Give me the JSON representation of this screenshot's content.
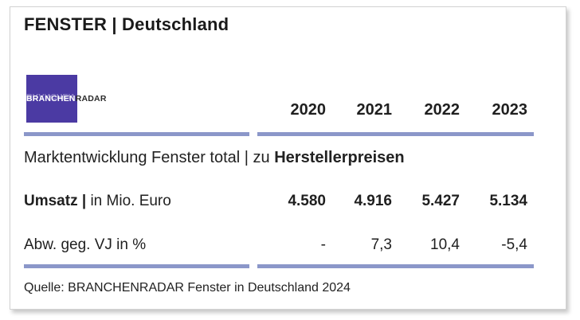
{
  "title": "FENSTER | Deutschland",
  "logo": {
    "part1": "BRANCHEN",
    "part2": "RADAR"
  },
  "years": [
    "2020",
    "2021",
    "2022",
    "2023"
  ],
  "subtitle": {
    "normal": "Marktentwicklung Fenster total | zu ",
    "bold": "Herstellerpreisen"
  },
  "rows": [
    {
      "label_bold": "Umsatz |",
      "label_normal": " in Mio. Euro",
      "values": [
        "4.580",
        "4.916",
        "5.427",
        "5.134"
      ]
    },
    {
      "label_bold": "",
      "label_normal": "Abw. geg. VJ in %",
      "values": [
        "-",
        "7,3",
        "10,4",
        "-5,4"
      ]
    }
  ],
  "source": "Quelle: BRANCHENRADAR Fenster in Deutschland 2024",
  "colors": {
    "accent_bar": "#8b97c9",
    "logo_bg": "#4b3aa3"
  }
}
